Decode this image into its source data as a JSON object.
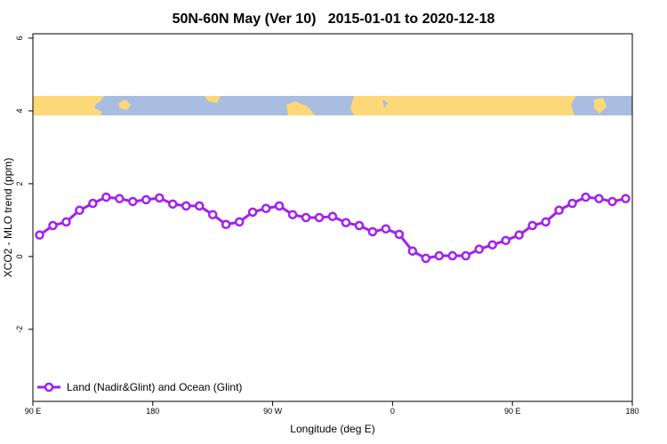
{
  "chart_data": {
    "type": "line",
    "title": "50N-60N May (Ver 10)   2015-01-01 to 2020-12-18",
    "xlabel": "Longitude (deg E)",
    "ylabel": "XCO2 - MLO trend (ppm)",
    "x": [
      95,
      105,
      115,
      125,
      135,
      145,
      155,
      165,
      175,
      185,
      195,
      205,
      215,
      225,
      235,
      245,
      255,
      265,
      275,
      285,
      295,
      305,
      315,
      325,
      335,
      345,
      355,
      365,
      375,
      385,
      395,
      405,
      415,
      425,
      435,
      445,
      455,
      465,
      475,
      485,
      495,
      505,
      515,
      525,
      535
    ],
    "series": [
      {
        "name": "Land (Nadir&Glint) and Ocean (Glint)",
        "color": "#a020f0",
        "values": [
          0.59,
          0.85,
          0.95,
          1.27,
          1.46,
          1.63,
          1.59,
          1.51,
          1.56,
          1.61,
          1.44,
          1.39,
          1.39,
          1.15,
          0.88,
          0.95,
          1.22,
          1.32,
          1.39,
          1.15,
          1.07,
          1.07,
          1.1,
          0.93,
          0.85,
          0.68,
          0.76,
          0.61,
          0.15,
          -0.05,
          0.02,
          0.02,
          0.02,
          0.2,
          0.32,
          0.44,
          0.59,
          0.85,
          0.95,
          1.27,
          1.46,
          1.63,
          1.59,
          1.51,
          1.59
        ]
      }
    ],
    "xlim": [
      90,
      540
    ],
    "xticks": [
      {
        "value": 90,
        "label": "90 E"
      },
      180,
      {
        "value": 270,
        "label": "90 W"
      },
      {
        "value": 360,
        "label": "0"
      },
      {
        "value": 450,
        "label": "90 E"
      },
      {
        "value": 540,
        "label": "180"
      }
    ],
    "ylim": [
      -3.98,
      6.12
    ],
    "yticks": [
      -2,
      0,
      2,
      4,
      6
    ],
    "legend": "bottom-left"
  }
}
